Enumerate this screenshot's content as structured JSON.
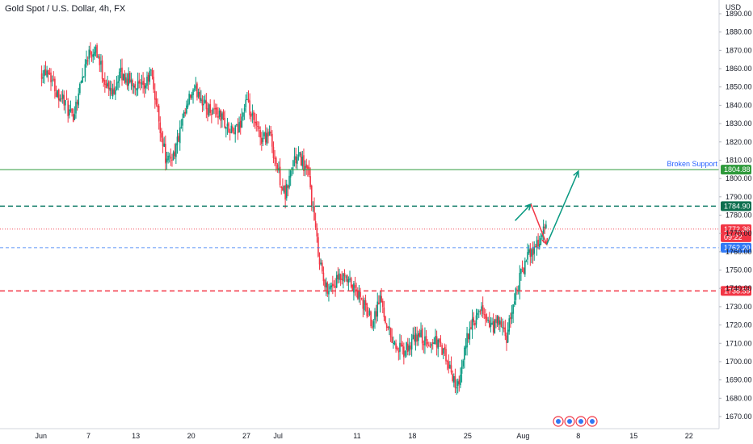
{
  "header": {
    "title": "Gold Spot / U.S. Dollar, 4h, FX",
    "currency": "USD"
  },
  "colors": {
    "up": "#089981",
    "down": "#f23645",
    "support_line": "#2e9a3b",
    "resistance_dashed": "#0c7a65",
    "red_dashed": "#f23645",
    "blue_dashed": "#3179f5",
    "current_badge": "#f23645",
    "arrow_up": "#089981",
    "arrow_down": "#f23645"
  },
  "chart_data": {
    "type": "candlestick",
    "ylim": [
      1665,
      1897
    ],
    "y_ticks": [
      "1890.00",
      "1880.00",
      "1870.00",
      "1860.00",
      "1850.00",
      "1840.00",
      "1830.00",
      "1820.00",
      "1810.00",
      "1800.00",
      "1790.00",
      "1780.00",
      "1770.00",
      "1760.00",
      "1750.00",
      "1740.00",
      "1730.00",
      "1720.00",
      "1710.00",
      "1700.00",
      "1690.00",
      "1680.00",
      "1670.00"
    ],
    "x_ticks": [
      "Jun",
      "7",
      "13",
      "20",
      "27",
      "Jul",
      "11",
      "18",
      "25",
      "Aug",
      "8",
      "15",
      "22"
    ],
    "levels": [
      {
        "name": "broken-support",
        "value": 1804.88,
        "label": "1804.88",
        "style": "solid",
        "note": "Broken Support"
      },
      {
        "name": "resistance",
        "value": 1784.9,
        "label": "1784.90",
        "style": "dashed"
      },
      {
        "name": "current-price",
        "value": 1772.36,
        "label": "1772.36",
        "sublabel": "09:22",
        "style": "dotted"
      },
      {
        "name": "retest",
        "value": 1762.2,
        "label": "1762.20",
        "style": "dashed"
      },
      {
        "name": "low-zone",
        "value": 1738.59,
        "label": "1738.59",
        "style": "dashed"
      }
    ],
    "projection_path": [
      {
        "date": "2021-07-31",
        "price": 1777
      },
      {
        "date": "2021-08-02",
        "price": 1786
      },
      {
        "date": "2021-08-04",
        "price": 1764
      },
      {
        "date": "2021-08-08",
        "price": 1804
      }
    ],
    "close_path": [
      {
        "date": "2021-06-01",
        "price": 1858
      },
      {
        "date": "2021-06-02",
        "price": 1860
      },
      {
        "date": "2021-06-03",
        "price": 1848
      },
      {
        "date": "2021-06-04",
        "price": 1843
      },
      {
        "date": "2021-06-05",
        "price": 1832
      },
      {
        "date": "2021-06-06",
        "price": 1850
      },
      {
        "date": "2021-06-07",
        "price": 1868
      },
      {
        "date": "2021-06-08",
        "price": 1872
      },
      {
        "date": "2021-06-09",
        "price": 1855
      },
      {
        "date": "2021-06-10",
        "price": 1846
      },
      {
        "date": "2021-06-11",
        "price": 1857
      },
      {
        "date": "2021-06-12",
        "price": 1854
      },
      {
        "date": "2021-06-13",
        "price": 1852
      },
      {
        "date": "2021-06-14",
        "price": 1848
      },
      {
        "date": "2021-06-15",
        "price": 1858
      },
      {
        "date": "2021-06-16",
        "price": 1832
      },
      {
        "date": "2021-06-17",
        "price": 1808
      },
      {
        "date": "2021-06-18",
        "price": 1815
      },
      {
        "date": "2021-06-19",
        "price": 1830
      },
      {
        "date": "2021-06-20",
        "price": 1845
      },
      {
        "date": "2021-06-21",
        "price": 1848
      },
      {
        "date": "2021-06-22",
        "price": 1838
      },
      {
        "date": "2021-06-23",
        "price": 1838
      },
      {
        "date": "2021-06-24",
        "price": 1833
      },
      {
        "date": "2021-06-25",
        "price": 1825
      },
      {
        "date": "2021-06-26",
        "price": 1826
      },
      {
        "date": "2021-06-27",
        "price": 1842
      },
      {
        "date": "2021-06-28",
        "price": 1830
      },
      {
        "date": "2021-06-29",
        "price": 1822
      },
      {
        "date": "2021-06-30",
        "price": 1825
      },
      {
        "date": "2021-07-01",
        "price": 1805
      },
      {
        "date": "2021-07-02",
        "price": 1790
      },
      {
        "date": "2021-07-03",
        "price": 1810
      },
      {
        "date": "2021-07-04",
        "price": 1811
      },
      {
        "date": "2021-07-05",
        "price": 1800
      },
      {
        "date": "2021-07-06",
        "price": 1765
      },
      {
        "date": "2021-07-07",
        "price": 1740
      },
      {
        "date": "2021-07-08",
        "price": 1742
      },
      {
        "date": "2021-07-09",
        "price": 1745
      },
      {
        "date": "2021-07-10",
        "price": 1743
      },
      {
        "date": "2021-07-11",
        "price": 1738
      },
      {
        "date": "2021-07-12",
        "price": 1730
      },
      {
        "date": "2021-07-13",
        "price": 1722
      },
      {
        "date": "2021-07-14",
        "price": 1735
      },
      {
        "date": "2021-07-15",
        "price": 1718
      },
      {
        "date": "2021-07-16",
        "price": 1708
      },
      {
        "date": "2021-07-17",
        "price": 1705
      },
      {
        "date": "2021-07-18",
        "price": 1710
      },
      {
        "date": "2021-07-19",
        "price": 1715
      },
      {
        "date": "2021-07-20",
        "price": 1708
      },
      {
        "date": "2021-07-21",
        "price": 1712
      },
      {
        "date": "2021-07-22",
        "price": 1705
      },
      {
        "date": "2021-07-23",
        "price": 1693
      },
      {
        "date": "2021-07-24",
        "price": 1685
      },
      {
        "date": "2021-07-25",
        "price": 1715
      },
      {
        "date": "2021-07-26",
        "price": 1722
      },
      {
        "date": "2021-07-27",
        "price": 1728
      },
      {
        "date": "2021-07-28",
        "price": 1718
      },
      {
        "date": "2021-07-29",
        "price": 1722
      },
      {
        "date": "2021-07-30",
        "price": 1712
      },
      {
        "date": "2021-07-31",
        "price": 1735
      },
      {
        "date": "2021-08-01",
        "price": 1750
      },
      {
        "date": "2021-08-02",
        "price": 1760
      },
      {
        "date": "2021-08-03",
        "price": 1765
      },
      {
        "date": "2021-08-04",
        "price": 1773
      }
    ]
  }
}
